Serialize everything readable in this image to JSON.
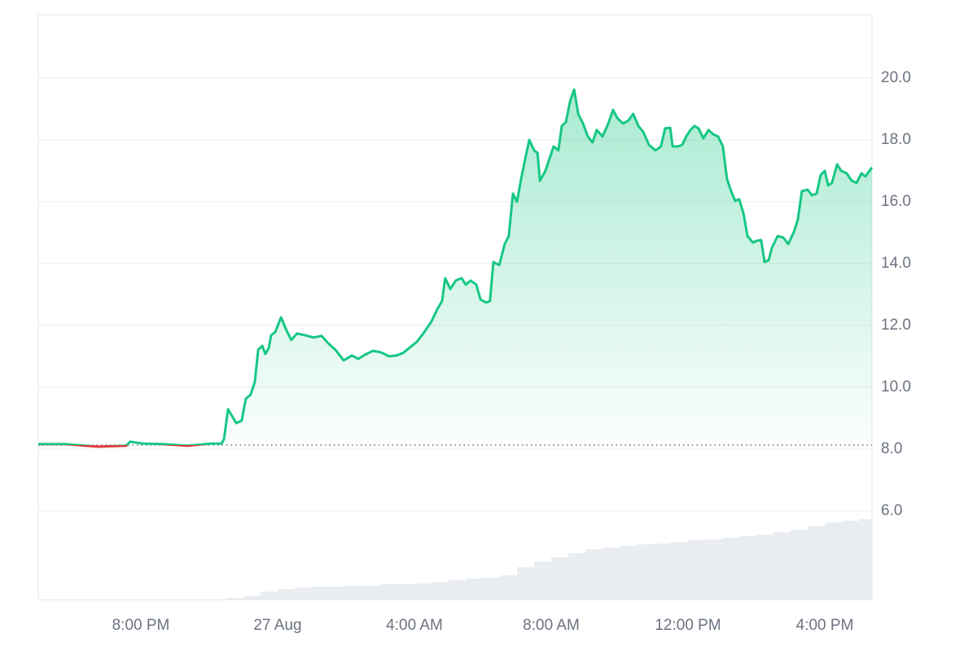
{
  "chart_data": {
    "type": "area-line",
    "x": [
      -7.0,
      -6.21,
      -5.26,
      -4.43,
      -4.31,
      -3.95,
      -3.36,
      -2.64,
      -1.93,
      -1.64,
      -1.57,
      -1.45,
      -1.21,
      -1.05,
      -0.93,
      -0.79,
      -0.67,
      -0.57,
      -0.45,
      -0.36,
      -0.26,
      -0.19,
      -0.07,
      0.1,
      0.26,
      0.4,
      0.57,
      0.81,
      1.05,
      1.29,
      1.48,
      1.69,
      1.93,
      2.17,
      2.36,
      2.55,
      2.79,
      3.02,
      3.26,
      3.48,
      3.67,
      3.9,
      4.07,
      4.26,
      4.5,
      4.67,
      4.81,
      4.9,
      5.05,
      5.21,
      5.38,
      5.5,
      5.64,
      5.81,
      5.93,
      6.1,
      6.21,
      6.31,
      6.48,
      6.64,
      6.76,
      6.88,
      7.0,
      7.12,
      7.24,
      7.36,
      7.5,
      7.6,
      7.67,
      7.83,
      7.95,
      8.07,
      8.21,
      8.31,
      8.43,
      8.55,
      8.67,
      8.79,
      8.93,
      9.07,
      9.21,
      9.33,
      9.5,
      9.67,
      9.81,
      9.93,
      10.1,
      10.26,
      10.4,
      10.55,
      10.69,
      10.86,
      11.05,
      11.21,
      11.33,
      11.48,
      11.55,
      11.71,
      11.83,
      11.95,
      12.07,
      12.19,
      12.31,
      12.45,
      12.6,
      12.74,
      12.88,
      13.02,
      13.14,
      13.26,
      13.38,
      13.5,
      13.62,
      13.74,
      13.9,
      14.02,
      14.14,
      14.24,
      14.36,
      14.45,
      14.62,
      14.79,
      14.93,
      15.1,
      15.21,
      15.33,
      15.5,
      15.62,
      15.76,
      15.88,
      16.0,
      16.1,
      16.21,
      16.36,
      16.48,
      16.64,
      16.79,
      16.93,
      17.07,
      17.19,
      17.38
    ],
    "series": [
      {
        "color": "#16c784",
        "down_color": "#e03a3e",
        "values": [
          8.16,
          8.16,
          8.08,
          8.11,
          8.24,
          8.18,
          8.16,
          8.11,
          8.18,
          8.18,
          8.32,
          9.29,
          8.84,
          8.92,
          9.63,
          9.76,
          10.16,
          11.21,
          11.34,
          11.08,
          11.26,
          11.68,
          11.79,
          12.26,
          11.84,
          11.53,
          11.74,
          11.68,
          11.61,
          11.66,
          11.42,
          11.21,
          10.87,
          11.03,
          10.92,
          11.05,
          11.18,
          11.13,
          11.0,
          11.03,
          11.11,
          11.32,
          11.47,
          11.74,
          12.13,
          12.53,
          12.79,
          13.53,
          13.18,
          13.45,
          13.53,
          13.32,
          13.45,
          13.32,
          12.84,
          12.74,
          12.79,
          14.05,
          13.95,
          14.63,
          14.89,
          16.26,
          16.0,
          16.74,
          17.39,
          18.0,
          17.66,
          17.58,
          16.68,
          17.0,
          17.39,
          17.79,
          17.66,
          18.45,
          18.58,
          19.24,
          19.63,
          18.84,
          18.53,
          18.11,
          17.92,
          18.32,
          18.11,
          18.53,
          18.97,
          18.71,
          18.53,
          18.63,
          18.84,
          18.45,
          18.26,
          17.84,
          17.66,
          17.79,
          18.37,
          18.39,
          17.79,
          17.79,
          17.84,
          18.11,
          18.32,
          18.45,
          18.37,
          18.05,
          18.32,
          18.18,
          18.11,
          17.79,
          16.74,
          16.34,
          16.03,
          16.08,
          15.63,
          14.89,
          14.68,
          14.74,
          14.76,
          14.05,
          14.11,
          14.5,
          14.89,
          14.84,
          14.63,
          15.03,
          15.42,
          16.34,
          16.39,
          16.21,
          16.26,
          16.87,
          17.0,
          16.53,
          16.61,
          17.21,
          17.0,
          16.92,
          16.68,
          16.61,
          16.92,
          16.82,
          17.11
        ]
      }
    ],
    "baseline": 8.13,
    "xlim": [
      -7.0,
      17.38
    ],
    "xticks": [
      {
        "value": -4,
        "label": "8:00 PM"
      },
      {
        "value": 0,
        "label": "27 Aug"
      },
      {
        "value": 4,
        "label": "4:00 AM"
      },
      {
        "value": 8,
        "label": "8:00 AM"
      },
      {
        "value": 12,
        "label": "12:00 PM"
      },
      {
        "value": 16,
        "label": "4:00 PM"
      }
    ],
    "ylim": [
      3.13,
      22.05
    ],
    "yticks": [
      {
        "value": 6,
        "label": "6.0"
      },
      {
        "value": 8,
        "label": "8.0"
      },
      {
        "value": 10,
        "label": "10.0"
      },
      {
        "value": 12,
        "label": "12.0"
      },
      {
        "value": 14,
        "label": "14.0"
      },
      {
        "value": 16,
        "label": "16.0"
      },
      {
        "value": 18,
        "label": "18.0"
      },
      {
        "value": 20,
        "label": "20.0"
      }
    ],
    "grid": true,
    "volume": {
      "color": "#e9edf2",
      "ylim": [
        0,
        719
      ],
      "x": [
        -1.5,
        -1.0,
        -0.5,
        0.0,
        0.5,
        1.0,
        1.5,
        2.0,
        2.5,
        3.0,
        3.5,
        4.0,
        4.5,
        5.0,
        5.5,
        6.0,
        6.5,
        7.0,
        7.5,
        8.0,
        8.5,
        9.0,
        9.5,
        10.0,
        10.5,
        11.0,
        11.5,
        12.0,
        12.5,
        13.0,
        13.5,
        14.0,
        14.5,
        15.0,
        15.5,
        16.0,
        16.5,
        17.0
      ],
      "values": [
        2,
        5,
        10,
        13,
        15,
        16,
        16,
        17,
        17,
        19,
        19,
        20,
        22,
        24,
        26,
        27,
        30,
        40,
        47,
        52,
        57,
        62,
        64,
        66,
        68,
        69,
        71,
        73,
        74,
        76,
        78,
        80,
        83,
        86,
        90,
        95,
        97,
        99
      ]
    }
  }
}
